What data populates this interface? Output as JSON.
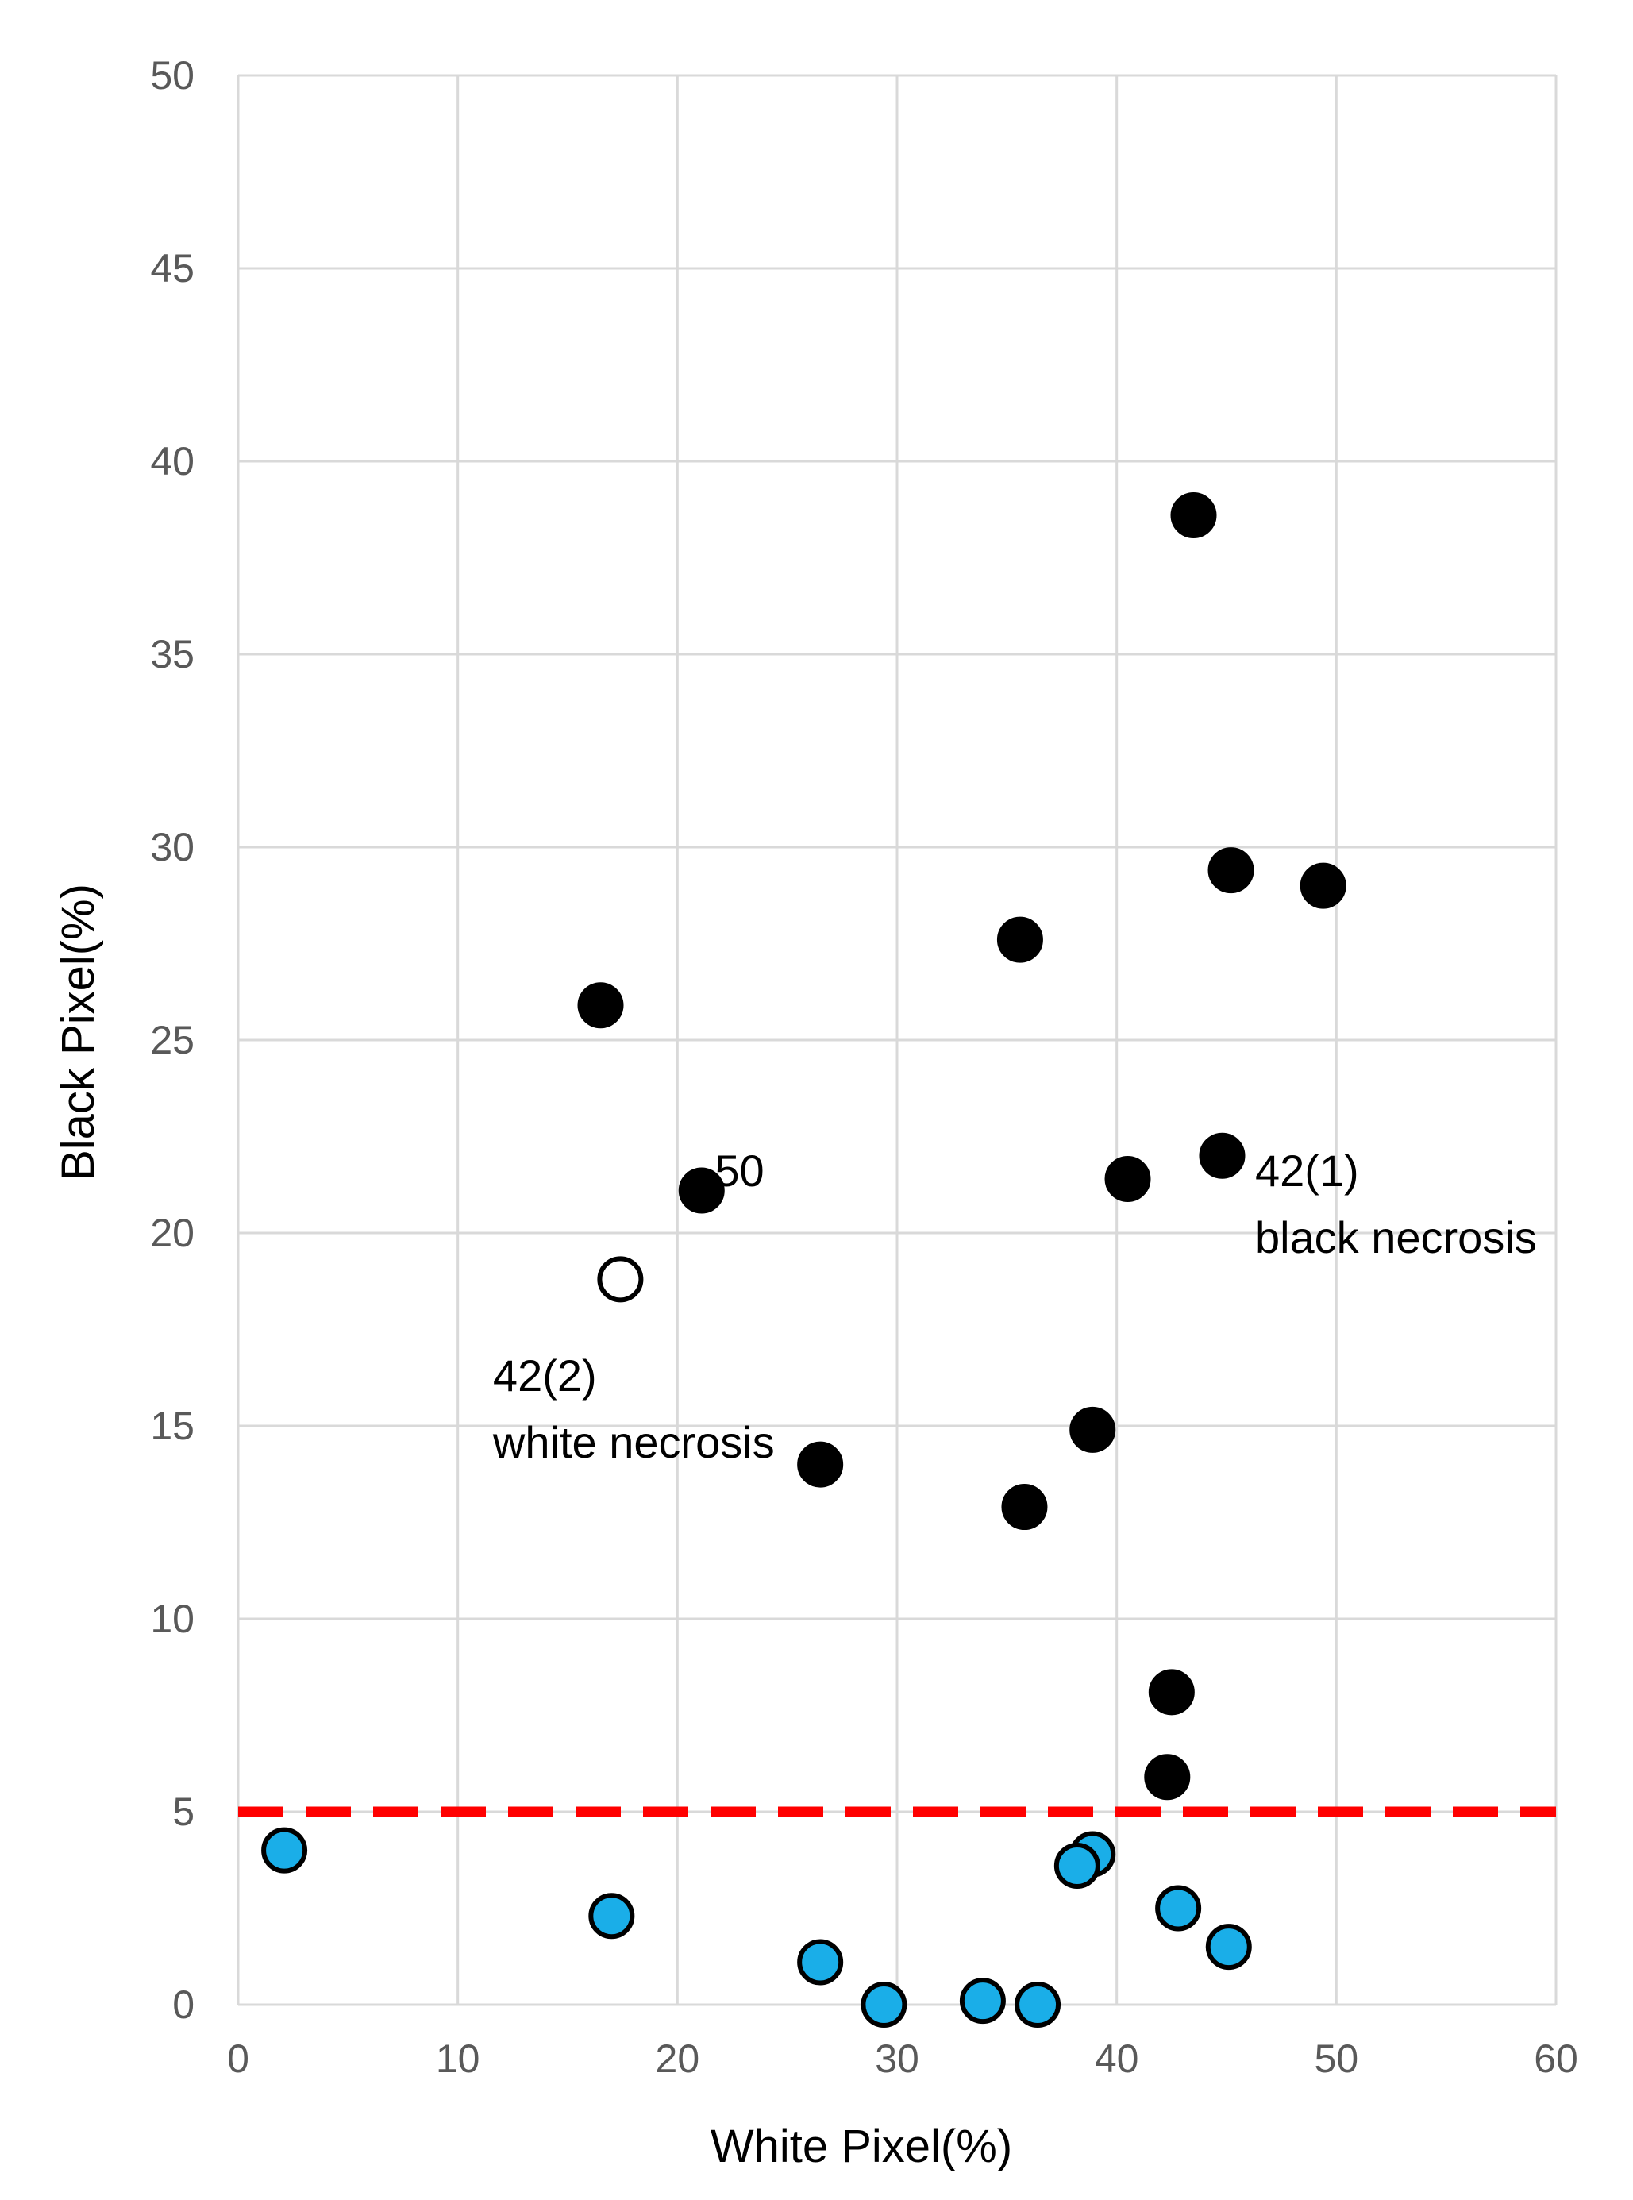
{
  "chart_data": {
    "type": "scatter",
    "title": "",
    "xlabel": "White Pixel(%)",
    "ylabel": "Black Pixel(%)",
    "xlim": [
      0,
      60
    ],
    "ylim": [
      0,
      50
    ],
    "xticks": [
      0,
      10,
      20,
      30,
      40,
      50,
      60
    ],
    "yticks": [
      0,
      5,
      10,
      15,
      20,
      25,
      30,
      35,
      40,
      45,
      50
    ],
    "grid": true,
    "threshold": {
      "y": 5,
      "color": "#ff0000",
      "style": "dashed"
    },
    "series": [
      {
        "name": "black",
        "color": "#000000",
        "points": [
          {
            "x": 43.5,
            "y": 38.6
          },
          {
            "x": 45.2,
            "y": 29.4
          },
          {
            "x": 49.4,
            "y": 29.0
          },
          {
            "x": 35.6,
            "y": 27.6
          },
          {
            "x": 16.5,
            "y": 25.9
          },
          {
            "x": 44.8,
            "y": 22.0
          },
          {
            "x": 40.5,
            "y": 21.4
          },
          {
            "x": 21.1,
            "y": 21.1
          },
          {
            "x": 38.9,
            "y": 14.9
          },
          {
            "x": 26.5,
            "y": 14.0
          },
          {
            "x": 35.8,
            "y": 12.9
          },
          {
            "x": 42.5,
            "y": 8.1
          },
          {
            "x": 42.3,
            "y": 5.9
          }
        ]
      },
      {
        "name": "white",
        "color": "#ffffff",
        "points": [
          {
            "x": 17.4,
            "y": 18.8
          }
        ]
      },
      {
        "name": "blue",
        "color": "#1aaee8",
        "points": [
          {
            "x": 2.1,
            "y": 4.0
          },
          {
            "x": 17.0,
            "y": 2.3
          },
          {
            "x": 26.5,
            "y": 1.1
          },
          {
            "x": 29.4,
            "y": 0.0
          },
          {
            "x": 33.9,
            "y": 0.1
          },
          {
            "x": 36.4,
            "y": 0.0
          },
          {
            "x": 38.9,
            "y": 3.9
          },
          {
            "x": 38.2,
            "y": 3.6
          },
          {
            "x": 42.8,
            "y": 2.5
          },
          {
            "x": 45.1,
            "y": 1.5
          }
        ]
      }
    ],
    "annotations": [
      {
        "lines": [
          "50"
        ],
        "x": 21.7,
        "y": 21.6
      },
      {
        "lines": [
          "42(1)",
          "black necrosis"
        ],
        "x": 46.3,
        "y": 21.6
      },
      {
        "lines": [
          "42(2)",
          "white necrosis"
        ],
        "x": 11.6,
        "y": 16.3
      }
    ]
  }
}
